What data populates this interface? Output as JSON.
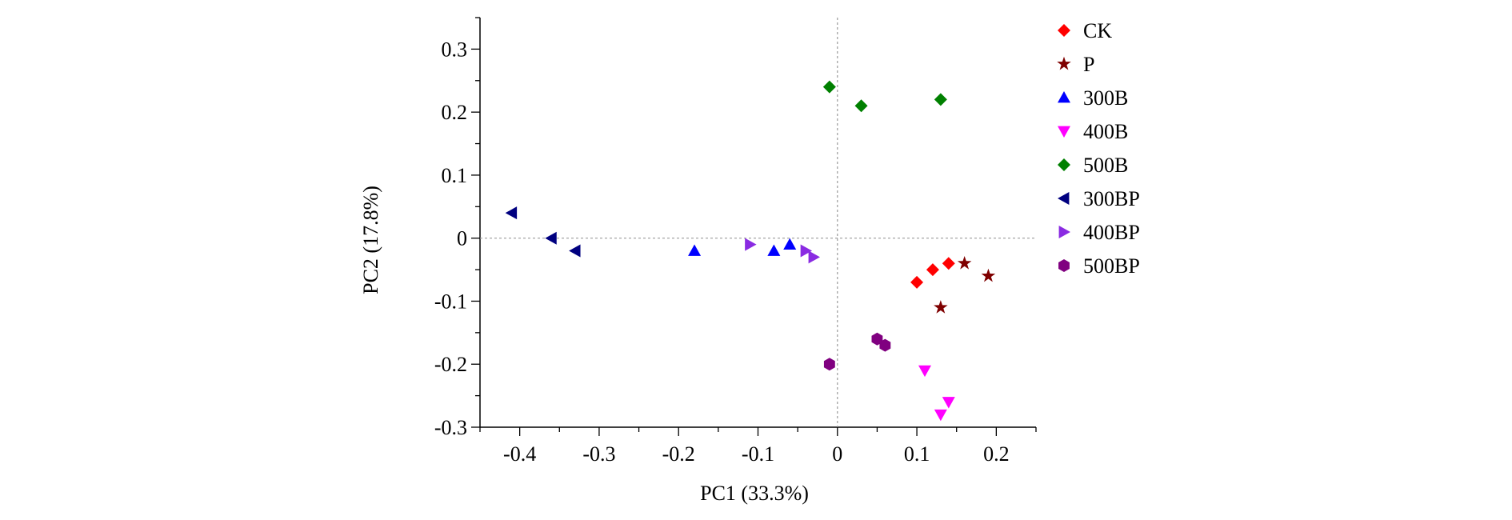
{
  "chart_data": {
    "type": "scatter",
    "title": "",
    "xlabel": "PC1 (33.3%)",
    "ylabel": "PC2 (17.8%)",
    "xlim": [
      -0.45,
      0.25
    ],
    "ylim": [
      -0.3,
      0.35
    ],
    "xticks": [
      -0.4,
      -0.3,
      -0.2,
      -0.1,
      0,
      0.1,
      0.2
    ],
    "xtick_labels": [
      "-0.4",
      "-0.3",
      "-0.2",
      "-0.1",
      "0",
      "0.1",
      "0.2"
    ],
    "yticks": [
      0.3,
      0.2,
      0.1,
      0,
      -0.1,
      -0.2,
      -0.3
    ],
    "ytick_labels": [
      "0.3",
      "0.2",
      "0.1",
      "0",
      "-0.1",
      "-0.2",
      "-0.3"
    ],
    "reference_lines": {
      "x": 0,
      "y": 0,
      "style": "dotted"
    },
    "grid": false,
    "legend_position": "right",
    "series": [
      {
        "name": "CK",
        "marker": "diamond",
        "color": "#ff0000",
        "points": [
          [
            0.1,
            -0.07
          ],
          [
            0.12,
            -0.05
          ],
          [
            0.14,
            -0.04
          ]
        ]
      },
      {
        "name": "P",
        "marker": "star",
        "color": "#7f0000",
        "points": [
          [
            0.16,
            -0.04
          ],
          [
            0.19,
            -0.06
          ],
          [
            0.13,
            -0.11
          ]
        ]
      },
      {
        "name": "300B",
        "marker": "triangle-up",
        "color": "#0000ff",
        "points": [
          [
            -0.18,
            -0.02
          ],
          [
            -0.08,
            -0.02
          ],
          [
            -0.06,
            -0.01
          ]
        ]
      },
      {
        "name": "400B",
        "marker": "triangle-down",
        "color": "#ff00ff",
        "points": [
          [
            0.11,
            -0.21
          ],
          [
            0.14,
            -0.26
          ],
          [
            0.13,
            -0.28
          ]
        ]
      },
      {
        "name": "500B",
        "marker": "diamond",
        "color": "#008000",
        "points": [
          [
            -0.01,
            0.24
          ],
          [
            0.03,
            0.21
          ],
          [
            0.13,
            0.22
          ]
        ]
      },
      {
        "name": "300BP",
        "marker": "triangle-left",
        "color": "#000080",
        "points": [
          [
            -0.41,
            0.04
          ],
          [
            -0.36,
            0.0
          ],
          [
            -0.33,
            -0.02
          ]
        ]
      },
      {
        "name": "400BP",
        "marker": "triangle-right",
        "color": "#8a2be2",
        "points": [
          [
            -0.11,
            -0.01
          ],
          [
            -0.04,
            -0.02
          ],
          [
            -0.03,
            -0.03
          ]
        ]
      },
      {
        "name": "500BP",
        "marker": "hexagon",
        "color": "#800080",
        "points": [
          [
            0.05,
            -0.16
          ],
          [
            0.06,
            -0.17
          ],
          [
            -0.01,
            -0.2
          ]
        ]
      }
    ]
  }
}
